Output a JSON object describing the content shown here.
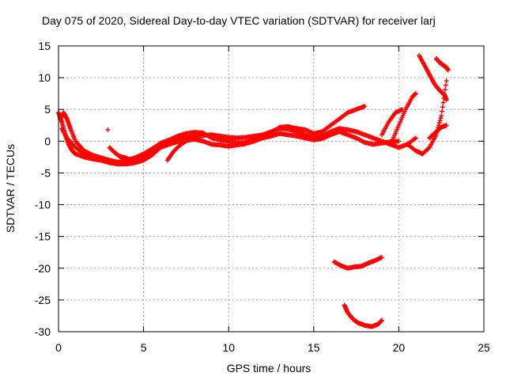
{
  "chart_data": {
    "type": "scatter",
    "title": "Day 075 of 2020, Sidereal Day-to-day VTEC variation (SDTVAR) for receiver larj",
    "xlabel": "GPS time / hours",
    "ylabel": "SDTVAR / TECUs",
    "xlim": [
      0,
      25
    ],
    "ylim": [
      -30,
      15
    ],
    "xticks": [
      "0",
      "5",
      "10",
      "15",
      "20",
      "25"
    ],
    "yticks": [
      "15",
      "10",
      "5",
      "0",
      "-5",
      "-10",
      "-15",
      "-20",
      "-25",
      "-30"
    ],
    "grid": true,
    "marker": "+",
    "color": "#ff0000",
    "series": [
      {
        "name": "main-band-1",
        "x": [
          0.0,
          0.2,
          0.4,
          0.6,
          0.8,
          1.0,
          1.5,
          2.0,
          2.5,
          3.0,
          3.5,
          4.0,
          4.5,
          5.0,
          5.5,
          6.0,
          6.5,
          7.0,
          7.5,
          8.0,
          8.5,
          9.0,
          9.5,
          10.0,
          10.5,
          11.0,
          11.5,
          12.0,
          12.5,
          13.0,
          13.5,
          14.0,
          14.5,
          15.0,
          15.5,
          16.0,
          16.5,
          17.0,
          17.5,
          18.0,
          18.5,
          19.0,
          19.5,
          20.0,
          20.5,
          21.0
        ],
        "y": [
          4.5,
          3.0,
          1.0,
          -0.5,
          -1.5,
          -2.0,
          -2.5,
          -2.8,
          -3.0,
          -3.2,
          -3.5,
          -3.4,
          -3.2,
          -2.8,
          -1.5,
          -0.8,
          -0.2,
          0.3,
          0.6,
          0.8,
          0.9,
          1.0,
          0.8,
          0.6,
          0.5,
          0.6,
          0.8,
          1.0,
          1.5,
          2.0,
          1.9,
          1.5,
          1.0,
          0.5,
          0.8,
          1.5,
          2.0,
          1.8,
          1.5,
          1.0,
          0.5,
          0.0,
          -0.5,
          -1.0,
          -0.5,
          0.5
        ]
      },
      {
        "name": "main-band-2",
        "x": [
          0.1,
          0.3,
          0.5,
          0.7,
          1.0,
          1.5,
          2.0,
          2.5,
          3.0,
          3.5,
          4.0,
          4.5,
          5.0,
          5.5,
          6.0,
          6.5,
          7.0,
          7.5,
          8.0,
          8.5,
          9.0,
          9.5,
          10.0,
          10.5,
          11.0,
          11.5,
          12.0,
          12.5,
          13.0,
          13.5,
          14.0,
          14.5,
          15.0,
          15.5,
          16.0,
          16.5,
          17.0,
          17.5,
          18.0
        ],
        "y": [
          3.5,
          4.5,
          3.5,
          2.0,
          0.0,
          -1.5,
          -2.2,
          -2.6,
          -3.0,
          -3.3,
          -3.0,
          -2.6,
          -2.0,
          -1.2,
          -0.3,
          0.2,
          0.8,
          1.2,
          1.4,
          1.3,
          0.5,
          0.2,
          0.0,
          -0.3,
          -0.2,
          0.3,
          0.8,
          1.3,
          2.2,
          2.3,
          2.0,
          1.8,
          1.2,
          1.5,
          2.5,
          3.5,
          4.5,
          5.0,
          5.5
        ]
      },
      {
        "name": "main-band-3",
        "x": [
          0.2,
          0.5,
          1.0,
          1.5,
          2.0,
          2.5,
          3.0,
          3.5,
          4.0,
          4.5,
          5.0,
          5.5,
          6.0,
          6.5,
          7.0,
          7.5,
          8.0,
          8.5,
          9.0,
          9.5,
          10.0,
          10.5,
          11.0,
          11.5,
          12.0,
          12.5,
          13.0,
          13.5,
          14.0,
          14.5,
          15.0,
          15.5,
          16.0,
          16.5,
          17.0,
          17.5,
          18.0,
          18.5,
          19.0,
          19.5,
          20.0
        ],
        "y": [
          2.0,
          0.5,
          -1.0,
          -2.0,
          -2.6,
          -3.0,
          -3.4,
          -3.6,
          -3.6,
          -3.4,
          -3.0,
          -2.2,
          -1.0,
          -0.5,
          -0.1,
          0.1,
          0.3,
          0.0,
          -0.5,
          -0.6,
          -0.8,
          -0.6,
          -0.4,
          0.0,
          0.5,
          0.8,
          1.2,
          1.0,
          0.8,
          0.5,
          0.2,
          0.4,
          1.0,
          1.5,
          1.0,
          0.5,
          -0.2,
          -0.5,
          -0.3,
          -0.1,
          0.0
        ]
      },
      {
        "name": "lower-band-upper",
        "x": [
          16.2,
          16.6,
          17.0,
          17.4,
          17.8,
          18.2,
          18.6,
          19.0
        ],
        "y": [
          -19.0,
          -19.6,
          -20.0,
          -19.8,
          -19.7,
          -19.2,
          -18.8,
          -18.3
        ]
      },
      {
        "name": "lower-band-lower",
        "x": [
          16.8,
          17.0,
          17.3,
          17.6,
          18.0,
          18.4,
          18.8,
          19.0
        ],
        "y": [
          -25.8,
          -27.0,
          -28.0,
          -28.6,
          -29.0,
          -29.2,
          -28.8,
          -28.2
        ]
      },
      {
        "name": "right-arc-high",
        "x": [
          21.2,
          21.5,
          21.8,
          22.1,
          22.4,
          22.7,
          22.8
        ],
        "y": [
          13.5,
          12.0,
          10.5,
          9.0,
          8.0,
          7.2,
          6.5
        ]
      },
      {
        "name": "right-arc-mid",
        "x": [
          22.2,
          22.4,
          22.6,
          22.8,
          22.9
        ],
        "y": [
          13.0,
          12.4,
          12.0,
          11.6,
          11.2
        ]
      },
      {
        "name": "right-arc-low",
        "x": [
          20.5,
          21.0,
          21.4,
          21.8,
          22.2,
          22.5,
          22.8
        ],
        "y": [
          -0.5,
          -1.5,
          -2.0,
          -1.0,
          1.0,
          4.0,
          9.5
        ]
      },
      {
        "name": "right-steep-1",
        "x": [
          19.6,
          20.0,
          20.4,
          20.8,
          21.0
        ],
        "y": [
          0.0,
          2.5,
          5.0,
          7.0,
          7.5
        ]
      },
      {
        "name": "right-steep-2",
        "x": [
          19.0,
          19.4,
          19.8,
          20.2
        ],
        "y": [
          1.0,
          3.0,
          4.5,
          5.0
        ]
      },
      {
        "name": "right-tail",
        "x": [
          21.8,
          22.2,
          22.5,
          22.8
        ],
        "y": [
          0.5,
          1.5,
          2.2,
          2.5
        ]
      },
      {
        "name": "early-cluster",
        "x": [
          3.0,
          3.3,
          3.6,
          3.9,
          4.2,
          4.5,
          4.8,
          5.1,
          5.4
        ],
        "y": [
          -1.0,
          -1.8,
          -2.4,
          -2.6,
          -2.9,
          -3.0,
          -2.8,
          -2.0,
          -1.5
        ]
      },
      {
        "name": "afternoon-strand",
        "x": [
          6.4,
          6.8,
          7.2,
          7.6,
          8.0,
          8.4
        ],
        "y": [
          -3.0,
          -1.5,
          -0.5,
          0.2,
          0.8,
          1.2
        ]
      },
      {
        "name": "isolated",
        "x": [
          2.9
        ],
        "y": [
          1.8
        ]
      }
    ]
  }
}
